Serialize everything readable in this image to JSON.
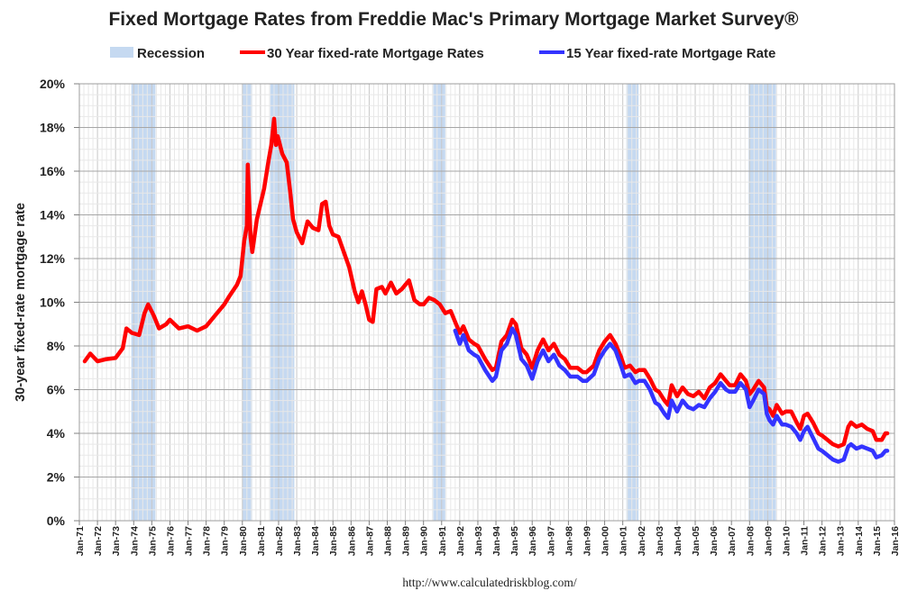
{
  "chart_data": {
    "type": "line",
    "title": "Fixed Mortgage Rates from Freddie Mac's Primary Mortgage Market Survey®",
    "ylabel": "30-year fixed-rate mortgage rate",
    "xlabel": "",
    "source": "http://www.calculatedriskblog.com/",
    "ylim": [
      0,
      20
    ],
    "xlim": [
      1971.0,
      2016.0
    ],
    "yticks": [
      "0%",
      "2%",
      "4%",
      "6%",
      "8%",
      "10%",
      "12%",
      "14%",
      "16%",
      "18%",
      "20%"
    ],
    "xticks": [
      "Jan-71",
      "Jan-72",
      "Jan-73",
      "Jan-74",
      "Jan-75",
      "Jan-76",
      "Jan-77",
      "Jan-78",
      "Jan-79",
      "Jan-80",
      "Jan-81",
      "Jan-82",
      "Jan-83",
      "Jan-84",
      "Jan-85",
      "Jan-86",
      "Jan-87",
      "Jan-88",
      "Jan-89",
      "Jan-90",
      "Jan-91",
      "Jan-92",
      "Jan-93",
      "Jan-94",
      "Jan-95",
      "Jan-96",
      "Jan-97",
      "Jan-98",
      "Jan-99",
      "Jan-00",
      "Jan-01",
      "Jan-02",
      "Jan-03",
      "Jan-04",
      "Jan-05",
      "Jan-06",
      "Jan-07",
      "Jan-08",
      "Jan-09",
      "Jan-10",
      "Jan-11",
      "Jan-12",
      "Jan-13",
      "Jan-14",
      "Jan-15",
      "Jan-16"
    ],
    "grid": true,
    "legend": "top",
    "colors": {
      "recession": "#c5d9f1",
      "rate30": "#ff0000",
      "rate15": "#3333ff",
      "grid": "#d9d9d9"
    },
    "recession": {
      "name": "Recession",
      "periods": [
        [
          1973.87,
          1975.2
        ],
        [
          1980.0,
          1980.54
        ],
        [
          1981.54,
          1982.87
        ],
        [
          1990.54,
          1991.2
        ],
        [
          2001.2,
          2001.87
        ],
        [
          2007.95,
          2009.46
        ]
      ]
    },
    "series": [
      {
        "name": "30 Year fixed-rate Mortgage Rates",
        "color": "#ff0000",
        "points": [
          [
            1971.3,
            7.3
          ],
          [
            1971.6,
            7.65
          ],
          [
            1972.0,
            7.3
          ],
          [
            1972.5,
            7.4
          ],
          [
            1973.0,
            7.45
          ],
          [
            1973.4,
            7.9
          ],
          [
            1973.6,
            8.8
          ],
          [
            1973.9,
            8.6
          ],
          [
            1974.3,
            8.5
          ],
          [
            1974.6,
            9.5
          ],
          [
            1974.8,
            9.9
          ],
          [
            1975.1,
            9.4
          ],
          [
            1975.4,
            8.8
          ],
          [
            1975.8,
            9.0
          ],
          [
            1976.0,
            9.2
          ],
          [
            1976.5,
            8.8
          ],
          [
            1977.0,
            8.9
          ],
          [
            1977.5,
            8.7
          ],
          [
            1978.0,
            8.9
          ],
          [
            1978.5,
            9.4
          ],
          [
            1979.0,
            9.9
          ],
          [
            1979.3,
            10.3
          ],
          [
            1979.7,
            10.8
          ],
          [
            1979.9,
            11.2
          ],
          [
            1980.1,
            12.8
          ],
          [
            1980.25,
            13.5
          ],
          [
            1980.3,
            16.3
          ],
          [
            1980.45,
            13.0
          ],
          [
            1980.55,
            12.3
          ],
          [
            1980.8,
            13.8
          ],
          [
            1981.0,
            14.5
          ],
          [
            1981.2,
            15.2
          ],
          [
            1981.45,
            16.5
          ],
          [
            1981.6,
            17.2
          ],
          [
            1981.75,
            18.4
          ],
          [
            1981.85,
            17.2
          ],
          [
            1981.95,
            17.6
          ],
          [
            1982.2,
            16.8
          ],
          [
            1982.45,
            16.4
          ],
          [
            1982.65,
            15.0
          ],
          [
            1982.8,
            13.8
          ],
          [
            1983.0,
            13.2
          ],
          [
            1983.3,
            12.7
          ],
          [
            1983.6,
            13.7
          ],
          [
            1983.9,
            13.4
          ],
          [
            1984.2,
            13.3
          ],
          [
            1984.4,
            14.5
          ],
          [
            1984.6,
            14.6
          ],
          [
            1984.8,
            13.5
          ],
          [
            1985.0,
            13.1
          ],
          [
            1985.3,
            13.0
          ],
          [
            1985.6,
            12.3
          ],
          [
            1985.9,
            11.6
          ],
          [
            1986.2,
            10.5
          ],
          [
            1986.4,
            10.0
          ],
          [
            1986.6,
            10.5
          ],
          [
            1986.8,
            9.9
          ],
          [
            1987.0,
            9.2
          ],
          [
            1987.2,
            9.1
          ],
          [
            1987.4,
            10.6
          ],
          [
            1987.7,
            10.7
          ],
          [
            1987.9,
            10.4
          ],
          [
            1988.2,
            10.9
          ],
          [
            1988.5,
            10.4
          ],
          [
            1988.8,
            10.6
          ],
          [
            1989.0,
            10.8
          ],
          [
            1989.2,
            11.0
          ],
          [
            1989.5,
            10.1
          ],
          [
            1989.8,
            9.9
          ],
          [
            1990.0,
            9.9
          ],
          [
            1990.3,
            10.2
          ],
          [
            1990.6,
            10.1
          ],
          [
            1990.9,
            9.9
          ],
          [
            1991.2,
            9.5
          ],
          [
            1991.5,
            9.6
          ],
          [
            1991.8,
            9.0
          ],
          [
            1992.0,
            8.6
          ],
          [
            1992.2,
            8.9
          ],
          [
            1992.5,
            8.3
          ],
          [
            1992.8,
            8.1
          ],
          [
            1993.0,
            8.0
          ],
          [
            1993.4,
            7.4
          ],
          [
            1993.8,
            6.9
          ],
          [
            1994.0,
            7.0
          ],
          [
            1994.3,
            8.2
          ],
          [
            1994.6,
            8.5
          ],
          [
            1994.9,
            9.2
          ],
          [
            1995.1,
            9.0
          ],
          [
            1995.4,
            7.9
          ],
          [
            1995.7,
            7.6
          ],
          [
            1996.0,
            7.0
          ],
          [
            1996.3,
            7.8
          ],
          [
            1996.6,
            8.3
          ],
          [
            1996.9,
            7.8
          ],
          [
            1997.2,
            8.1
          ],
          [
            1997.5,
            7.6
          ],
          [
            1997.8,
            7.4
          ],
          [
            1998.1,
            7.0
          ],
          [
            1998.5,
            7.0
          ],
          [
            1998.8,
            6.8
          ],
          [
            1999.0,
            6.8
          ],
          [
            1999.4,
            7.1
          ],
          [
            1999.7,
            7.8
          ],
          [
            2000.0,
            8.2
          ],
          [
            2000.3,
            8.5
          ],
          [
            2000.6,
            8.1
          ],
          [
            2000.9,
            7.5
          ],
          [
            2001.1,
            7.0
          ],
          [
            2001.4,
            7.1
          ],
          [
            2001.7,
            6.8
          ],
          [
            2001.9,
            6.9
          ],
          [
            2002.2,
            6.9
          ],
          [
            2002.5,
            6.5
          ],
          [
            2002.8,
            6.0
          ],
          [
            2003.0,
            5.9
          ],
          [
            2003.3,
            5.5
          ],
          [
            2003.5,
            5.3
          ],
          [
            2003.7,
            6.2
          ],
          [
            2004.0,
            5.7
          ],
          [
            2004.3,
            6.1
          ],
          [
            2004.6,
            5.8
          ],
          [
            2004.9,
            5.7
          ],
          [
            2005.2,
            5.9
          ],
          [
            2005.5,
            5.6
          ],
          [
            2005.8,
            6.1
          ],
          [
            2006.1,
            6.3
          ],
          [
            2006.4,
            6.7
          ],
          [
            2006.7,
            6.4
          ],
          [
            2006.9,
            6.2
          ],
          [
            2007.2,
            6.2
          ],
          [
            2007.5,
            6.7
          ],
          [
            2007.8,
            6.4
          ],
          [
            2008.0,
            5.8
          ],
          [
            2008.2,
            6.0
          ],
          [
            2008.5,
            6.4
          ],
          [
            2008.8,
            6.1
          ],
          [
            2008.95,
            5.2
          ],
          [
            2009.1,
            5.1
          ],
          [
            2009.3,
            4.8
          ],
          [
            2009.5,
            5.3
          ],
          [
            2009.8,
            4.9
          ],
          [
            2010.0,
            5.0
          ],
          [
            2010.3,
            5.0
          ],
          [
            2010.6,
            4.5
          ],
          [
            2010.8,
            4.2
          ],
          [
            2011.0,
            4.8
          ],
          [
            2011.2,
            4.9
          ],
          [
            2011.5,
            4.5
          ],
          [
            2011.8,
            4.0
          ],
          [
            2012.0,
            3.9
          ],
          [
            2012.3,
            3.7
          ],
          [
            2012.6,
            3.5
          ],
          [
            2012.9,
            3.4
          ],
          [
            2013.2,
            3.5
          ],
          [
            2013.45,
            4.3
          ],
          [
            2013.6,
            4.5
          ],
          [
            2013.9,
            4.3
          ],
          [
            2014.2,
            4.4
          ],
          [
            2014.5,
            4.2
          ],
          [
            2014.8,
            4.1
          ],
          [
            2015.0,
            3.7
          ],
          [
            2015.3,
            3.7
          ],
          [
            2015.5,
            4.0
          ],
          [
            2015.6,
            4.0
          ]
        ]
      },
      {
        "name": "15 Year fixed-rate Mortgage Rate",
        "color": "#3333ff",
        "points": [
          [
            1991.75,
            8.7
          ],
          [
            1992.0,
            8.1
          ],
          [
            1992.2,
            8.5
          ],
          [
            1992.5,
            7.8
          ],
          [
            1992.8,
            7.6
          ],
          [
            1993.0,
            7.5
          ],
          [
            1993.4,
            6.9
          ],
          [
            1993.8,
            6.4
          ],
          [
            1994.0,
            6.6
          ],
          [
            1994.3,
            7.8
          ],
          [
            1994.6,
            8.1
          ],
          [
            1994.9,
            8.8
          ],
          [
            1995.1,
            8.5
          ],
          [
            1995.4,
            7.4
          ],
          [
            1995.7,
            7.1
          ],
          [
            1996.0,
            6.5
          ],
          [
            1996.3,
            7.3
          ],
          [
            1996.6,
            7.8
          ],
          [
            1996.9,
            7.3
          ],
          [
            1997.2,
            7.6
          ],
          [
            1997.5,
            7.1
          ],
          [
            1997.8,
            6.9
          ],
          [
            1998.1,
            6.6
          ],
          [
            1998.5,
            6.6
          ],
          [
            1998.8,
            6.4
          ],
          [
            1999.0,
            6.4
          ],
          [
            1999.4,
            6.7
          ],
          [
            1999.7,
            7.4
          ],
          [
            2000.0,
            7.8
          ],
          [
            2000.3,
            8.1
          ],
          [
            2000.6,
            7.8
          ],
          [
            2000.9,
            7.1
          ],
          [
            2001.1,
            6.6
          ],
          [
            2001.4,
            6.7
          ],
          [
            2001.7,
            6.3
          ],
          [
            2001.9,
            6.4
          ],
          [
            2002.2,
            6.4
          ],
          [
            2002.5,
            6.0
          ],
          [
            2002.8,
            5.4
          ],
          [
            2003.0,
            5.3
          ],
          [
            2003.3,
            4.9
          ],
          [
            2003.5,
            4.7
          ],
          [
            2003.7,
            5.5
          ],
          [
            2004.0,
            5.0
          ],
          [
            2004.3,
            5.5
          ],
          [
            2004.6,
            5.2
          ],
          [
            2004.9,
            5.1
          ],
          [
            2005.2,
            5.3
          ],
          [
            2005.5,
            5.2
          ],
          [
            2005.8,
            5.6
          ],
          [
            2006.1,
            5.9
          ],
          [
            2006.4,
            6.3
          ],
          [
            2006.7,
            6.0
          ],
          [
            2006.9,
            5.9
          ],
          [
            2007.2,
            5.9
          ],
          [
            2007.5,
            6.3
          ],
          [
            2007.8,
            6.0
          ],
          [
            2008.0,
            5.2
          ],
          [
            2008.2,
            5.5
          ],
          [
            2008.5,
            6.0
          ],
          [
            2008.8,
            5.8
          ],
          [
            2008.95,
            4.9
          ],
          [
            2009.1,
            4.6
          ],
          [
            2009.3,
            4.4
          ],
          [
            2009.5,
            4.8
          ],
          [
            2009.8,
            4.4
          ],
          [
            2010.0,
            4.4
          ],
          [
            2010.3,
            4.3
          ],
          [
            2010.6,
            4.0
          ],
          [
            2010.8,
            3.7
          ],
          [
            2011.0,
            4.1
          ],
          [
            2011.2,
            4.3
          ],
          [
            2011.5,
            3.8
          ],
          [
            2011.8,
            3.3
          ],
          [
            2012.0,
            3.2
          ],
          [
            2012.3,
            3.0
          ],
          [
            2012.6,
            2.8
          ],
          [
            2012.9,
            2.7
          ],
          [
            2013.2,
            2.8
          ],
          [
            2013.45,
            3.4
          ],
          [
            2013.6,
            3.5
          ],
          [
            2013.9,
            3.3
          ],
          [
            2014.2,
            3.4
          ],
          [
            2014.5,
            3.3
          ],
          [
            2014.8,
            3.2
          ],
          [
            2015.0,
            2.9
          ],
          [
            2015.3,
            3.0
          ],
          [
            2015.5,
            3.2
          ],
          [
            2015.6,
            3.2
          ]
        ]
      }
    ]
  }
}
